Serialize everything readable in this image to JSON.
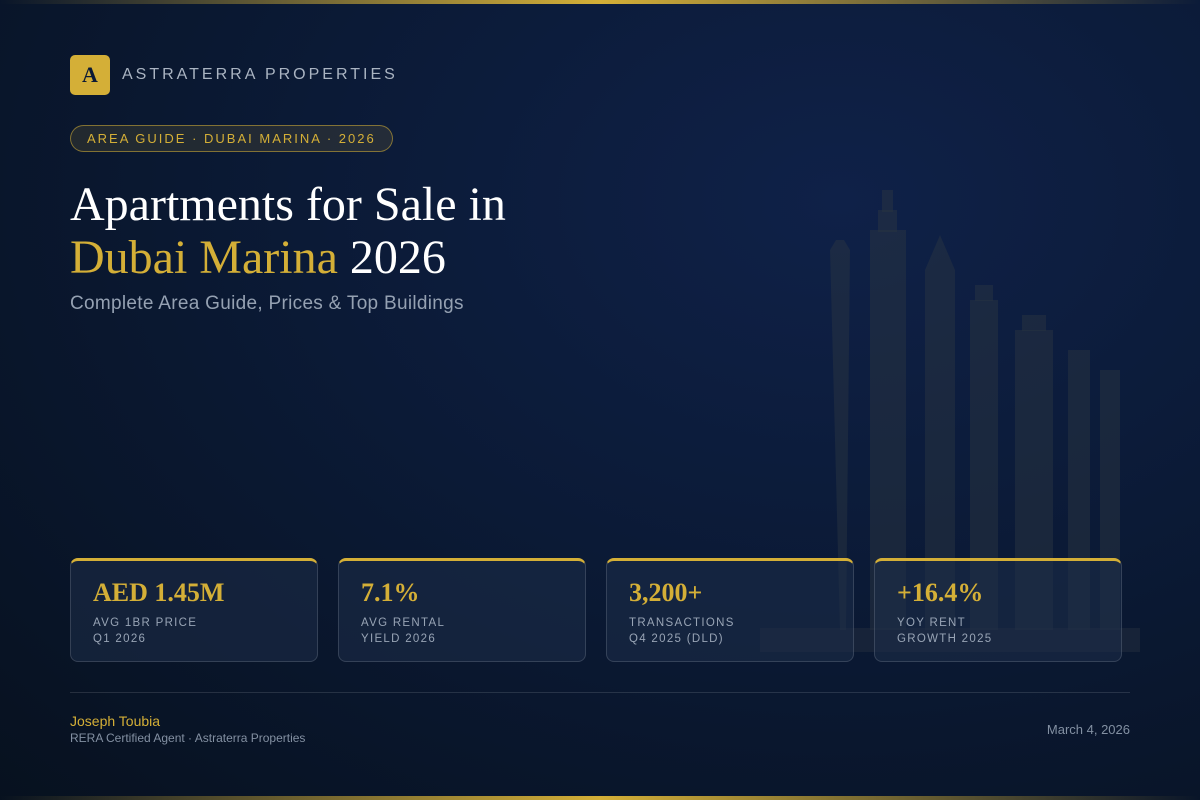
{
  "brand": {
    "logo_letter": "A",
    "name": "ASTRATERRA PROPERTIES",
    "accent_color": "#d4af37"
  },
  "badge": "AREA GUIDE · DUBAI MARINA · 2026",
  "headline": {
    "line1": "Apartments for Sale in",
    "highlight": "Dubai Marina",
    "year": "2026"
  },
  "subtitle": "Complete Area Guide, Prices & Top Buildings",
  "stats": [
    {
      "value": "AED 1.45M",
      "label_line1": "AVG 1BR PRICE",
      "label_line2": "Q1 2026"
    },
    {
      "value": "7.1%",
      "label_line1": "AVG RENTAL",
      "label_line2": "YIELD 2026"
    },
    {
      "value": "3,200+",
      "label_line1": "TRANSACTIONS",
      "label_line2": "Q4 2025 (DLD)"
    },
    {
      "value": "+16.4%",
      "label_line1": "YOY RENT",
      "label_line2": "GROWTH 2025"
    }
  ],
  "footer": {
    "agent_name": "Joseph Toubia",
    "agent_title": "RERA Certified Agent · Astraterra Properties",
    "date": "March 4, 2026"
  },
  "colors": {
    "background": "#0b1a36",
    "gold": "#d4af37",
    "muted_text": "#95a1b2"
  }
}
